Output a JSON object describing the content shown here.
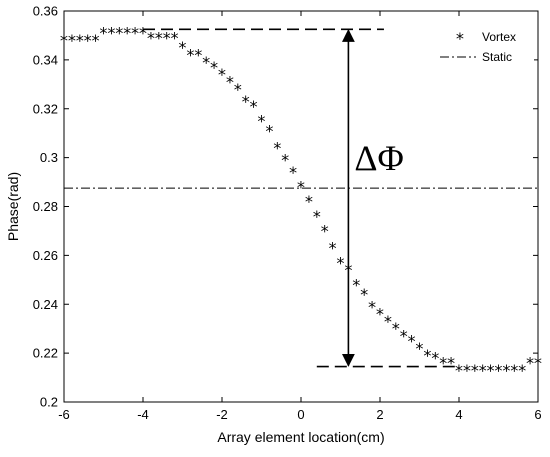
{
  "chart_data": {
    "type": "scatter",
    "title": "",
    "xlabel": "Array element location(cm)",
    "ylabel": "Phase(rad)",
    "xlim": [
      -6,
      6
    ],
    "ylim": [
      0.2,
      0.36
    ],
    "xticks": [
      -6,
      -4,
      -2,
      0,
      2,
      4,
      6
    ],
    "yticks": [
      0.2,
      0.22,
      0.24,
      0.26,
      0.28,
      0.3,
      0.32,
      0.34,
      0.36
    ],
    "xtick_labels": [
      "-6",
      "-4",
      "-2",
      "0",
      "2",
      "4",
      "6"
    ],
    "ytick_labels": [
      "0.2",
      "0.22",
      "0.24",
      "0.26",
      "0.28",
      "0.3",
      "0.32",
      "0.34",
      "0.36"
    ],
    "legend_position": "top-right",
    "grid": false,
    "series": [
      {
        "name": "Vortex",
        "marker": "*",
        "x": [
          -6.0,
          -5.8,
          -5.6,
          -5.4,
          -5.2,
          -5.0,
          -4.8,
          -4.6,
          -4.4,
          -4.2,
          -4.0,
          -3.8,
          -3.6,
          -3.4,
          -3.2,
          -3.0,
          -2.8,
          -2.6,
          -2.4,
          -2.2,
          -2.0,
          -1.8,
          -1.6,
          -1.4,
          -1.2,
          -1.0,
          -0.8,
          -0.6,
          -0.4,
          -0.2,
          0.0,
          0.2,
          0.4,
          0.6,
          0.8,
          1.0,
          1.2,
          1.4,
          1.6,
          1.8,
          2.0,
          2.2,
          2.4,
          2.6,
          2.8,
          3.0,
          3.2,
          3.4,
          3.6,
          3.8,
          4.0,
          4.2,
          4.4,
          4.6,
          4.8,
          5.0,
          5.2,
          5.4,
          5.6,
          5.8,
          6.0
        ],
        "y": [
          0.349,
          0.349,
          0.349,
          0.349,
          0.349,
          0.352,
          0.352,
          0.352,
          0.352,
          0.352,
          0.352,
          0.35,
          0.35,
          0.35,
          0.35,
          0.346,
          0.343,
          0.343,
          0.34,
          0.338,
          0.335,
          0.332,
          0.329,
          0.324,
          0.322,
          0.316,
          0.312,
          0.305,
          0.3,
          0.295,
          0.289,
          0.283,
          0.277,
          0.271,
          0.264,
          0.258,
          0.255,
          0.249,
          0.245,
          0.24,
          0.237,
          0.234,
          0.231,
          0.228,
          0.226,
          0.223,
          0.22,
          0.219,
          0.217,
          0.217,
          0.214,
          0.214,
          0.214,
          0.214,
          0.214,
          0.214,
          0.214,
          0.214,
          0.214,
          0.217,
          0.217
        ]
      },
      {
        "name": "Static",
        "line_style": "dash-dot",
        "x": [
          -6,
          6
        ],
        "y": [
          0.2875,
          0.2875
        ]
      }
    ],
    "annotations": [
      {
        "type": "dashed-hline",
        "y": 0.3525,
        "x_start": -4.0,
        "x_end": 2.1
      },
      {
        "type": "dashed-hline",
        "y": 0.2145,
        "x_start": 0.4,
        "x_end": 4.0
      },
      {
        "type": "double-arrow",
        "x": 1.2,
        "y_start": 0.2145,
        "y_end": 0.3525
      },
      {
        "type": "text",
        "text": "ΔΦ",
        "x": 1.35,
        "y": 0.295
      }
    ]
  }
}
